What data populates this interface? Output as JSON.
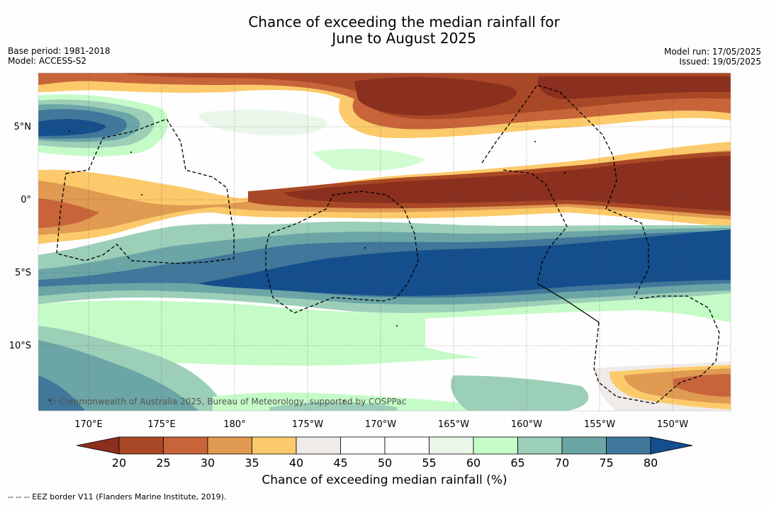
{
  "title_line1": "Chance of exceeding the median rainfall for",
  "title_line2": "June to August 2025",
  "base_period": "Base period: 1981-2018",
  "model": "Model: ACCESS-S2",
  "model_run": "Model run: 17/05/2025",
  "issued": "Issued: 19/05/2025",
  "copyright": "© Commonwealth of Australia 2025, Bureau of Meteorology, supported by COSPPac",
  "lat_labels": [
    "5°N",
    "0°",
    "5°S",
    "10°S"
  ],
  "lon_labels": [
    "170°E",
    "175°E",
    "180°",
    "175°W",
    "170°W",
    "165°W",
    "160°W",
    "155°W",
    "150°W"
  ],
  "colorbar": {
    "ticks": [
      "20",
      "25",
      "30",
      "35",
      "40",
      "45",
      "50",
      "55",
      "60",
      "65",
      "70",
      "75",
      "80"
    ],
    "colors": [
      "#8b2f1e",
      "#a94826",
      "#c8643a",
      "#e09a52",
      "#fcca6a",
      "#f0ebe8",
      "#fefefe",
      "#fefefe",
      "#eaf6ea",
      "#c5fbc7",
      "#9ccfb8",
      "#6ca5a6",
      "#40779a",
      "#154e8c"
    ],
    "label": "Chance of exceeding median rainfall (%)"
  },
  "footer": "--  --  -- EEZ border V11 (Flanders Marine Institute, 2019)."
}
